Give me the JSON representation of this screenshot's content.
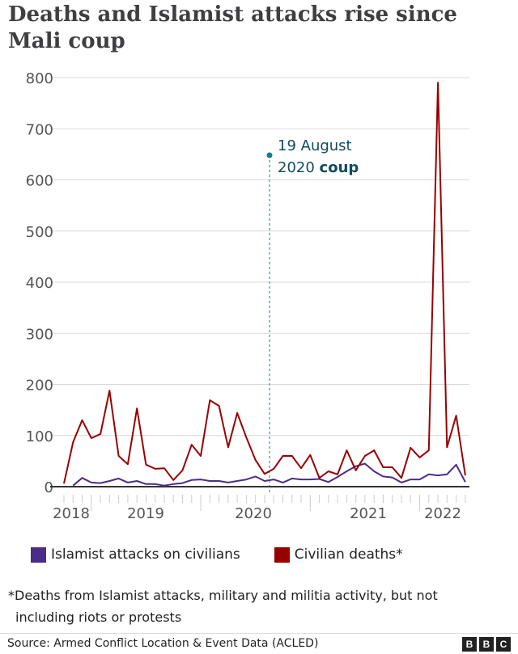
{
  "chart_data": {
    "type": "line",
    "title": "Deaths and Islamist attacks rise since Mali coup",
    "xlabel": "",
    "ylabel": "",
    "ylim": [
      0,
      800
    ],
    "yticks": [
      "0",
      "100",
      "200",
      "300",
      "400",
      "500",
      "600",
      "700",
      "800"
    ],
    "xtick_labels": [
      "2018",
      "2019",
      "2020",
      "2021",
      "2022"
    ],
    "grid": true,
    "legend_position": "bottom",
    "series": [
      {
        "name": "Islamist attacks on civilians",
        "color": "#4b2c86",
        "values": [
          null,
          2,
          17,
          8,
          7,
          11,
          16,
          8,
          11,
          5,
          5,
          2,
          5,
          7,
          13,
          14,
          11,
          11,
          8,
          11,
          14,
          20,
          11,
          14,
          8,
          16,
          14,
          14,
          15,
          9,
          19,
          30,
          40,
          45,
          30,
          20,
          18,
          8,
          14,
          14,
          24,
          22,
          24,
          43,
          9
        ]
      },
      {
        "name": "Civilian deaths*",
        "color": "#990000",
        "values": [
          6,
          87,
          130,
          95,
          103,
          188,
          60,
          44,
          153,
          43,
          35,
          36,
          13,
          32,
          82,
          60,
          169,
          158,
          77,
          144,
          96,
          52,
          25,
          35,
          60,
          60,
          36,
          62,
          17,
          30,
          24,
          71,
          32,
          60,
          71,
          38,
          38,
          17,
          76,
          57,
          71,
          790,
          77,
          139,
          22
        ]
      }
    ],
    "annotation": {
      "line1": "19 August",
      "line2_plain": "2020 ",
      "line2_bold": "coup",
      "color": "#1b7a8c"
    }
  },
  "footnote": {
    "line1": "*Deaths from Islamist attacks, military and militia activity, but not",
    "line2": "including riots or protests"
  },
  "source": "Source: Armed Conflict Location & Event Data (ACLED)",
  "logo": [
    "B",
    "B",
    "C"
  ]
}
